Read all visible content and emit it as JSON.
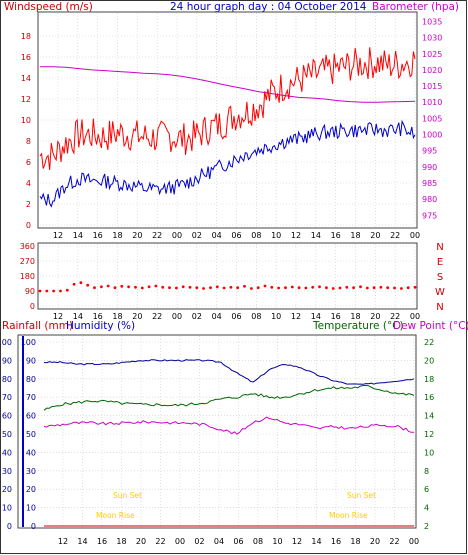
{
  "header": {
    "windspeed_label": "Windspeed (m/s)",
    "title": "24 hour graph day : 04 October 2014",
    "barometer_label": "Barometer (hpa)"
  },
  "labels": {
    "rainfall": "Rainfall (mm)",
    "humidity": "Humidity (%)",
    "temperature": "Temperature (°C)",
    "dewpoint": "Dew Point (°C)",
    "sunset_1": "Sun Set",
    "moonrise_1": "Moon Rise",
    "sunset_2": "Sun Set",
    "moonrise_2": "Moon Rise"
  },
  "colors": {
    "wind_gust": "#ff0000",
    "wind_avg": "#0000cc",
    "barometer": "#cc00cc",
    "direction": "#ff0000",
    "humidity": "#000099",
    "temperature": "#006600",
    "dewpoint": "#cc00cc",
    "rain": "#cc0000",
    "annotation": "#ffcc00"
  },
  "chart_data": [
    {
      "type": "line",
      "name": "wind-and-pressure",
      "x_ticks": [
        "12",
        "14",
        "16",
        "18",
        "20",
        "22",
        "00",
        "02",
        "04",
        "06",
        "08",
        "10",
        "12",
        "14",
        "16",
        "18",
        "20",
        "22",
        "00"
      ],
      "y_left_ticks": [
        0,
        2,
        4,
        6,
        8,
        10,
        12,
        14,
        16,
        18
      ],
      "y_left_lim": [
        0,
        20
      ],
      "y_right_ticks": [
        975,
        980,
        985,
        990,
        995,
        1000,
        1005,
        1010,
        1015,
        1020,
        1025,
        1030,
        1035
      ],
      "y_right_lim": [
        972,
        1037
      ],
      "series": [
        {
          "name": "Windspeed",
          "role": "gust",
          "values": [
            6.6,
            6.6,
            7.8,
            8.6,
            8.6,
            8.4,
            8.8,
            8.6,
            8.4,
            8.3,
            8.5,
            8.2,
            8.4,
            9.2,
            9.6,
            10.4,
            10.8,
            11.5,
            12.6,
            13.4,
            13.8,
            14.2,
            14.6,
            14.9,
            15.2,
            15.4,
            15.5,
            15.2,
            15.4,
            15.8
          ]
        },
        {
          "name": "Windspeed",
          "role": "average",
          "values": [
            2.4,
            2.4,
            3.8,
            4.4,
            4.2,
            4.2,
            4.0,
            3.8,
            3.5,
            3.4,
            3.5,
            3.8,
            4.4,
            5.0,
            5.6,
            6.2,
            6.8,
            7.2,
            7.6,
            8.0,
            8.2,
            8.6,
            8.8,
            8.9,
            9.0,
            9.0,
            9.1,
            9.0,
            9.2,
            8.6
          ]
        },
        {
          "name": "Barometer",
          "values": [
            1021,
            1021,
            1020.8,
            1020.4,
            1020,
            1019.8,
            1019.5,
            1019.3,
            1019.0,
            1018.8,
            1018.5,
            1018.0,
            1017.3,
            1016.5,
            1015.6,
            1014.8,
            1014.0,
            1013.2,
            1012.6,
            1012.0,
            1011.5,
            1011.3,
            1011.0,
            1010.5,
            1010.2,
            1010.0,
            1010.0,
            1010.1,
            1010.2,
            1010.3
          ]
        }
      ]
    },
    {
      "type": "scatter",
      "name": "wind-direction",
      "x_ticks": [
        "12",
        "14",
        "16",
        "18",
        "20",
        "22",
        "00",
        "02",
        "04",
        "06",
        "08",
        "10",
        "12",
        "14",
        "16",
        "18",
        "20",
        "22",
        "00"
      ],
      "y_ticks": [
        0,
        90,
        180,
        270,
        360
      ],
      "y_lim": [
        0,
        360
      ],
      "y_right_labels": [
        "N",
        "W",
        "S",
        "E",
        "N"
      ],
      "values": [
        90,
        90,
        90,
        90,
        95,
        130,
        140,
        125,
        110,
        115,
        120,
        110,
        118,
        115,
        112,
        108,
        115,
        120,
        112,
        110,
        108,
        115,
        112,
        110,
        105,
        110,
        115,
        108,
        112,
        110,
        118,
        105,
        110,
        120,
        112,
        108,
        110,
        114,
        110,
        108,
        112,
        115,
        110,
        105,
        108,
        112,
        110,
        115,
        108,
        110,
        112,
        110,
        108,
        105,
        110,
        112
      ]
    },
    {
      "type": "line",
      "name": "temperature-and-humidity",
      "x_ticks": [
        "12",
        "14",
        "16",
        "18",
        "20",
        "22",
        "00",
        "02",
        "04",
        "06",
        "08",
        "10",
        "12",
        "14",
        "16",
        "18",
        "20",
        "22",
        "00"
      ],
      "y_left_ticks": [
        0,
        10,
        20,
        30,
        40,
        50,
        60,
        70,
        80,
        90,
        100
      ],
      "y_left_lim": [
        0,
        100
      ],
      "y_right_ticks": [
        2,
        4,
        6,
        8,
        10,
        12,
        14,
        16,
        18,
        20,
        22
      ],
      "y_right_lim": [
        2,
        22
      ],
      "series": [
        {
          "name": "Humidity",
          "values": [
            89,
            89,
            88,
            88,
            88,
            89,
            90,
            90,
            90,
            90,
            90,
            89,
            83,
            78,
            85,
            88,
            86,
            82,
            79,
            77,
            77,
            78,
            79,
            80
          ]
        },
        {
          "name": "Temperature",
          "values": [
            14.6,
            15.2,
            15.4,
            15.6,
            15.5,
            15.3,
            15.2,
            15.2,
            15.1,
            15.2,
            15.4,
            15.8,
            16.0,
            16.4,
            16.0,
            16.0,
            16.4,
            16.8,
            17.0,
            17.0,
            17.2,
            16.8,
            16.4,
            16.2
          ]
        },
        {
          "name": "Dew Point",
          "values": [
            12.8,
            13.0,
            13.2,
            13.2,
            13.1,
            13.2,
            13.3,
            13.3,
            13.2,
            13.2,
            13.0,
            12.5,
            12.0,
            13.3,
            13.8,
            13.2,
            13.0,
            12.6,
            12.8,
            12.6,
            12.8,
            13.0,
            12.8,
            12.2
          ]
        },
        {
          "name": "Rainfall",
          "values": [
            0,
            0,
            0,
            0,
            0,
            0,
            0,
            0,
            0,
            0,
            0,
            0,
            0,
            0,
            0,
            0,
            0,
            0,
            0,
            0,
            0,
            0,
            0,
            0
          ]
        }
      ]
    }
  ]
}
